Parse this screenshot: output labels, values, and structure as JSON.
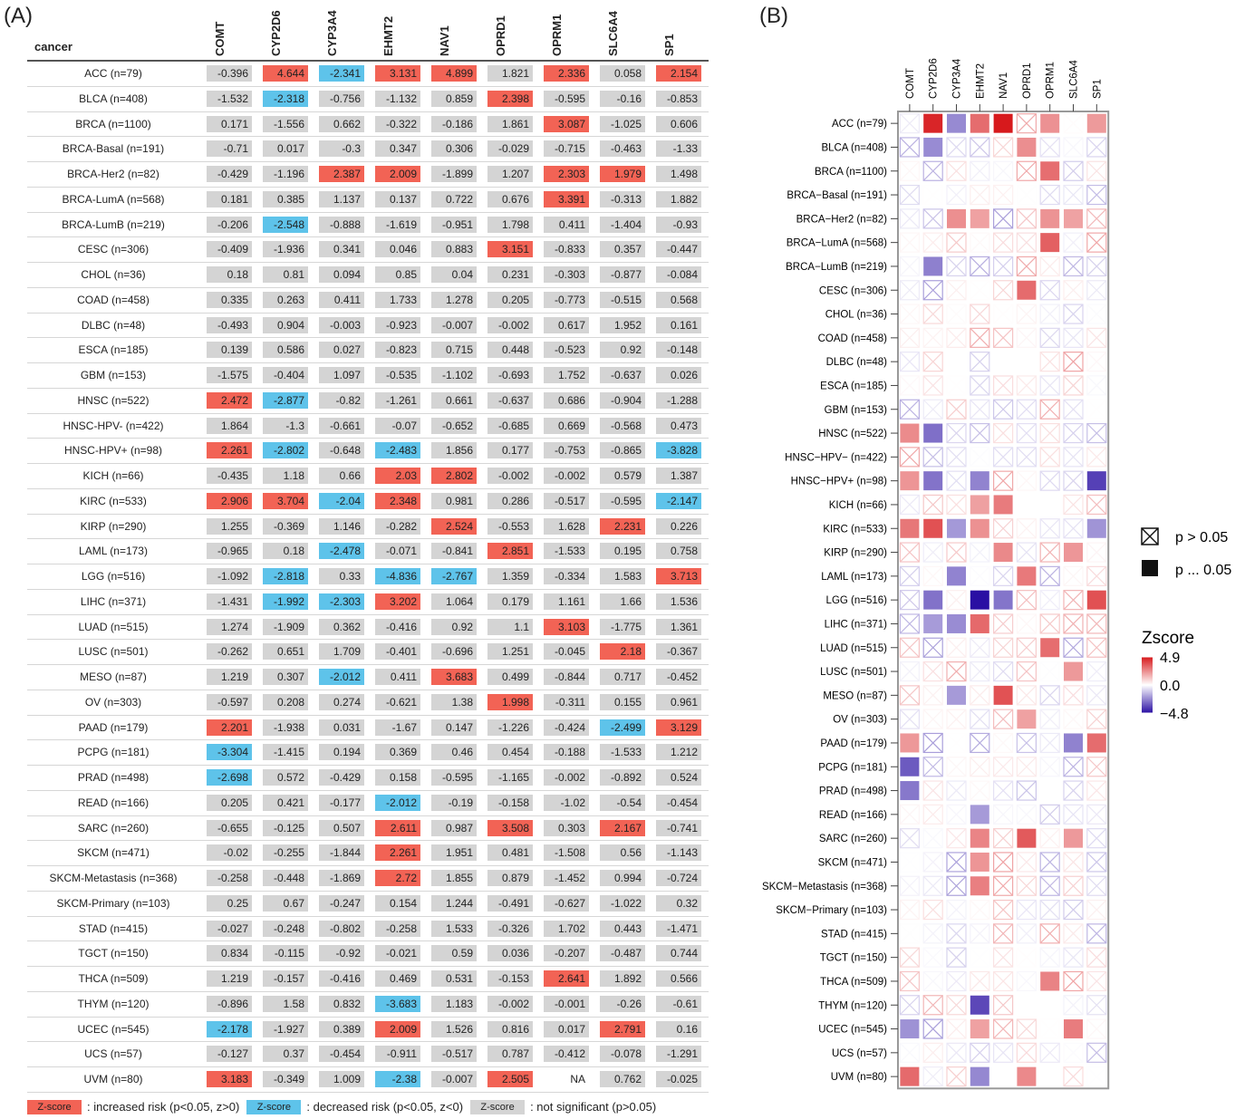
{
  "panel_a_label": "(A)",
  "panel_b_label": "(B)",
  "table_a": {
    "row_header": "cancer",
    "columns": [
      "COMT",
      "CYP2D6",
      "CYP3A4",
      "EHMT2",
      "NAV1",
      "OPRD1",
      "OPRM1",
      "SLC6A4",
      "SP1"
    ],
    "rows": [
      {
        "cancer": "ACC (n=79)",
        "values": [
          "-0.396",
          "4.644",
          "-2.341",
          "3.131",
          "4.899",
          "1.821",
          "2.336",
          "0.058",
          "2.154"
        ]
      },
      {
        "cancer": "BLCA (n=408)",
        "values": [
          "-1.532",
          "-2.318",
          "-0.756",
          "-1.132",
          "0.859",
          "2.398",
          "-0.595",
          "-0.16",
          "-0.853"
        ]
      },
      {
        "cancer": "BRCA (n=1100)",
        "values": [
          "0.171",
          "-1.556",
          "0.662",
          "-0.322",
          "-0.186",
          "1.861",
          "3.087",
          "-1.025",
          "0.606"
        ]
      },
      {
        "cancer": "BRCA-Basal (n=191)",
        "values": [
          "-0.71",
          "0.017",
          "-0.3",
          "0.347",
          "0.306",
          "-0.029",
          "-0.715",
          "-0.463",
          "-1.33"
        ]
      },
      {
        "cancer": "BRCA-Her2 (n=82)",
        "values": [
          "-0.429",
          "-1.196",
          "2.387",
          "2.009",
          "-1.899",
          "1.207",
          "2.303",
          "1.979",
          "1.498"
        ]
      },
      {
        "cancer": "BRCA-LumA (n=568)",
        "values": [
          "0.181",
          "0.385",
          "1.137",
          "0.137",
          "0.722",
          "0.676",
          "3.391",
          "-0.313",
          "1.882"
        ]
      },
      {
        "cancer": "BRCA-LumB (n=219)",
        "values": [
          "-0.206",
          "-2.548",
          "-0.888",
          "-1.619",
          "-0.951",
          "1.798",
          "0.411",
          "-1.404",
          "-0.93"
        ]
      },
      {
        "cancer": "CESC (n=306)",
        "values": [
          "-0.409",
          "-1.936",
          "0.341",
          "0.046",
          "0.883",
          "3.151",
          "-0.833",
          "0.357",
          "-0.447"
        ]
      },
      {
        "cancer": "CHOL (n=36)",
        "values": [
          "0.18",
          "0.81",
          "0.094",
          "0.85",
          "0.04",
          "0.231",
          "-0.303",
          "-0.877",
          "-0.084"
        ]
      },
      {
        "cancer": "COAD (n=458)",
        "values": [
          "0.335",
          "0.263",
          "0.411",
          "1.733",
          "1.278",
          "0.205",
          "-0.773",
          "-0.515",
          "0.568"
        ]
      },
      {
        "cancer": "DLBC (n=48)",
        "values": [
          "-0.493",
          "0.904",
          "-0.003",
          "-0.923",
          "-0.007",
          "-0.002",
          "0.617",
          "1.952",
          "0.161"
        ]
      },
      {
        "cancer": "ESCA (n=185)",
        "values": [
          "0.139",
          "0.586",
          "0.027",
          "-0.823",
          "0.715",
          "0.448",
          "-0.523",
          "0.92",
          "-0.148"
        ]
      },
      {
        "cancer": "GBM (n=153)",
        "values": [
          "-1.575",
          "-0.404",
          "1.097",
          "-0.535",
          "-1.102",
          "-0.693",
          "1.752",
          "-0.637",
          "0.026"
        ]
      },
      {
        "cancer": "HNSC (n=522)",
        "values": [
          "2.472",
          "-2.877",
          "-0.82",
          "-1.261",
          "0.661",
          "-0.637",
          "0.686",
          "-0.904",
          "-1.288"
        ]
      },
      {
        "cancer": "HNSC-HPV- (n=422)",
        "values": [
          "1.864",
          "-1.3",
          "-0.661",
          "-0.07",
          "-0.652",
          "-0.685",
          "0.669",
          "-0.568",
          "0.473"
        ]
      },
      {
        "cancer": "HNSC-HPV+ (n=98)",
        "values": [
          "2.261",
          "-2.802",
          "-0.648",
          "-2.483",
          "1.856",
          "0.177",
          "-0.753",
          "-0.865",
          "-3.828"
        ]
      },
      {
        "cancer": "KICH (n=66)",
        "values": [
          "-0.435",
          "1.18",
          "0.66",
          "2.03",
          "2.802",
          "-0.002",
          "-0.002",
          "0.579",
          "1.387"
        ]
      },
      {
        "cancer": "KIRC (n=533)",
        "values": [
          "2.906",
          "3.704",
          "-2.04",
          "2.348",
          "0.981",
          "0.286",
          "-0.517",
          "-0.595",
          "-2.147"
        ]
      },
      {
        "cancer": "KIRP (n=290)",
        "values": [
          "1.255",
          "-0.369",
          "1.146",
          "-0.282",
          "2.524",
          "-0.553",
          "1.628",
          "2.231",
          "0.226"
        ]
      },
      {
        "cancer": "LAML (n=173)",
        "values": [
          "-0.965",
          "0.18",
          "-2.478",
          "-0.071",
          "-0.841",
          "2.851",
          "-1.533",
          "0.195",
          "0.758"
        ]
      },
      {
        "cancer": "LGG (n=516)",
        "values": [
          "-1.092",
          "-2.818",
          "0.33",
          "-4.836",
          "-2.767",
          "1.359",
          "-0.334",
          "1.583",
          "3.713"
        ]
      },
      {
        "cancer": "LIHC (n=371)",
        "values": [
          "-1.431",
          "-1.992",
          "-2.303",
          "3.202",
          "1.064",
          "0.179",
          "1.161",
          "1.66",
          "1.536"
        ]
      },
      {
        "cancer": "LUAD (n=515)",
        "values": [
          "1.274",
          "-1.909",
          "0.362",
          "-0.416",
          "0.92",
          "1.1",
          "3.103",
          "-1.775",
          "1.361"
        ]
      },
      {
        "cancer": "LUSC (n=501)",
        "values": [
          "-0.262",
          "0.651",
          "1.709",
          "-0.401",
          "-0.696",
          "1.251",
          "-0.045",
          "2.18",
          "-0.367"
        ]
      },
      {
        "cancer": "MESO (n=87)",
        "values": [
          "1.219",
          "0.307",
          "-2.012",
          "0.411",
          "3.683",
          "0.499",
          "-0.844",
          "0.717",
          "-0.452"
        ]
      },
      {
        "cancer": "OV (n=303)",
        "values": [
          "-0.597",
          "0.208",
          "0.274",
          "-0.621",
          "1.38",
          "1.998",
          "-0.311",
          "0.155",
          "0.961"
        ]
      },
      {
        "cancer": "PAAD (n=179)",
        "values": [
          "2.201",
          "-1.938",
          "0.031",
          "-1.67",
          "0.147",
          "-1.226",
          "-0.424",
          "-2.499",
          "3.129"
        ]
      },
      {
        "cancer": "PCPG (n=181)",
        "values": [
          "-3.304",
          "-1.415",
          "0.194",
          "0.369",
          "0.46",
          "0.454",
          "-0.188",
          "-1.533",
          "1.212"
        ]
      },
      {
        "cancer": "PRAD (n=498)",
        "values": [
          "-2.698",
          "0.572",
          "-0.429",
          "0.158",
          "-0.595",
          "-1.165",
          "-0.002",
          "-0.892",
          "0.524"
        ]
      },
      {
        "cancer": "READ (n=166)",
        "values": [
          "0.205",
          "0.421",
          "-0.177",
          "-2.012",
          "-0.19",
          "-0.158",
          "-1.02",
          "-0.54",
          "-0.454"
        ]
      },
      {
        "cancer": "SARC (n=260)",
        "values": [
          "-0.655",
          "-0.125",
          "0.507",
          "2.611",
          "0.987",
          "3.508",
          "0.303",
          "2.167",
          "-0.741"
        ]
      },
      {
        "cancer": "SKCM (n=471)",
        "values": [
          "-0.02",
          "-0.255",
          "-1.844",
          "2.261",
          "1.951",
          "0.481",
          "-1.508",
          "0.56",
          "-1.143"
        ]
      },
      {
        "cancer": "SKCM-Metastasis (n=368)",
        "values": [
          "-0.258",
          "-0.448",
          "-1.869",
          "2.72",
          "1.855",
          "0.879",
          "-1.452",
          "0.994",
          "-0.724"
        ]
      },
      {
        "cancer": "SKCM-Primary (n=103)",
        "values": [
          "0.25",
          "0.67",
          "-0.247",
          "0.154",
          "1.244",
          "-0.491",
          "-0.627",
          "-1.022",
          "0.32"
        ]
      },
      {
        "cancer": "STAD (n=415)",
        "values": [
          "-0.027",
          "-0.248",
          "-0.802",
          "-0.258",
          "1.533",
          "-0.326",
          "1.702",
          "0.443",
          "-1.471"
        ]
      },
      {
        "cancer": "TGCT (n=150)",
        "values": [
          "0.834",
          "-0.115",
          "-0.92",
          "-0.021",
          "0.59",
          "0.036",
          "-0.207",
          "-0.487",
          "0.744"
        ]
      },
      {
        "cancer": "THCA (n=509)",
        "values": [
          "1.219",
          "-0.157",
          "-0.416",
          "0.469",
          "0.531",
          "-0.153",
          "2.641",
          "1.892",
          "0.566"
        ]
      },
      {
        "cancer": "THYM (n=120)",
        "values": [
          "-0.896",
          "1.58",
          "0.832",
          "-3.683",
          "1.183",
          "-0.002",
          "-0.001",
          "-0.26",
          "-0.61"
        ]
      },
      {
        "cancer": "UCEC (n=545)",
        "values": [
          "-2.178",
          "-1.927",
          "0.389",
          "2.009",
          "1.526",
          "0.816",
          "0.017",
          "2.791",
          "0.16"
        ]
      },
      {
        "cancer": "UCS (n=57)",
        "values": [
          "-0.127",
          "0.37",
          "-0.454",
          "-0.911",
          "-0.517",
          "0.787",
          "-0.412",
          "-0.078",
          "-1.291"
        ]
      },
      {
        "cancer": "UVM (n=80)",
        "values": [
          "3.183",
          "-0.349",
          "1.009",
          "-2.38",
          "-0.007",
          "2.505",
          "NA",
          "0.762",
          "-0.025"
        ]
      }
    ],
    "legend": {
      "chip_text": "Z-score",
      "increased": ": increased risk (p<0.05, z>0)",
      "decreased": ": decreased risk (p<0.05, z<0)",
      "not_significant": ": not significant (p>0.05)"
    },
    "colors": {
      "increased": "#f26355",
      "decreased": "#5ec3ea",
      "not_significant": "#d4d4d4"
    }
  },
  "chart_data": {
    "type": "heatmap",
    "columns": [
      "COMT",
      "CYP2D6",
      "CYP3A4",
      "EHMT2",
      "NAV1",
      "OPRD1",
      "OPRM1",
      "SLC6A4",
      "SP1"
    ],
    "rows": [
      "ACC (n=79)",
      "BLCA (n=408)",
      "BRCA (n=1100)",
      "BRCA−Basal (n=191)",
      "BRCA−Her2 (n=82)",
      "BRCA−LumA (n=568)",
      "BRCA−LumB (n=219)",
      "CESC (n=306)",
      "CHOL (n=36)",
      "COAD (n=458)",
      "DLBC (n=48)",
      "ESCA (n=185)",
      "GBM (n=153)",
      "HNSC (n=522)",
      "HNSC−HPV− (n=422)",
      "HNSC−HPV+ (n=98)",
      "KICH (n=66)",
      "KIRC (n=533)",
      "KIRP (n=290)",
      "LAML (n=173)",
      "LGG (n=516)",
      "LIHC (n=371)",
      "LUAD (n=515)",
      "LUSC (n=501)",
      "MESO (n=87)",
      "OV (n=303)",
      "PAAD (n=179)",
      "PCPG (n=181)",
      "PRAD (n=498)",
      "READ (n=166)",
      "SARC (n=260)",
      "SKCM (n=471)",
      "SKCM−Metastasis (n=368)",
      "SKCM−Primary (n=103)",
      "STAD (n=415)",
      "TGCT (n=150)",
      "THCA (n=509)",
      "THYM (n=120)",
      "UCEC (n=545)",
      "UCS (n=57)",
      "UVM (n=80)"
    ],
    "values_source": "table_a.rows[].values",
    "significance_rule": "p<0.05 where |z| >= 1.96",
    "legend_symbols": [
      {
        "symbol": "crossed-box",
        "label": "p > 0.05"
      },
      {
        "symbol": "filled-box",
        "label": "p ... 0.05"
      }
    ],
    "colorbar": {
      "title": "Zscore",
      "ticks": [
        "4.9",
        "0.0",
        "−4.8"
      ],
      "range": [
        -4.8,
        4.9
      ],
      "low_color": "#2a0fa3",
      "mid_color": "#ffffff",
      "high_color": "#d7191c"
    }
  }
}
